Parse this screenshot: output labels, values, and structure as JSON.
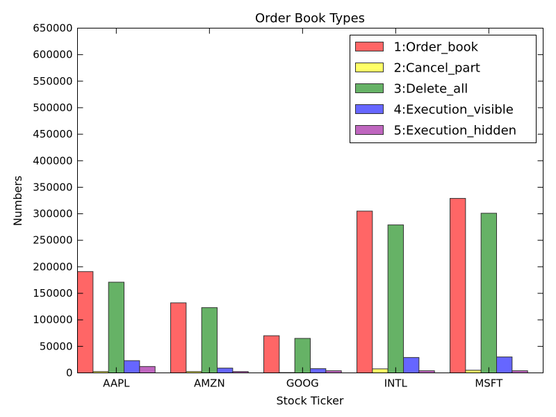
{
  "chart_data": {
    "type": "bar",
    "title": "Order Book Types",
    "xlabel": "Stock Ticker",
    "ylabel": "Numbers",
    "ylim": [
      0,
      650000
    ],
    "yticks": [
      0,
      50000,
      100000,
      150000,
      200000,
      250000,
      300000,
      350000,
      400000,
      450000,
      500000,
      550000,
      600000,
      650000
    ],
    "legend_position": "top-right",
    "grid": false,
    "categories": [
      "AAPL",
      "AMZN",
      "GOOG",
      "INTL",
      "MSFT"
    ],
    "series": [
      {
        "name": "1:Order_book",
        "color": "#ff6666",
        "values": [
          191000,
          132000,
          70000,
          305000,
          329000
        ]
      },
      {
        "name": "2:Cancel_part",
        "color": "#ffff66",
        "values": [
          2500,
          2500,
          500,
          7500,
          5000
        ]
      },
      {
        "name": "3:Delete_all",
        "color": "#66b266",
        "values": [
          171000,
          123000,
          65000,
          279000,
          301000
        ]
      },
      {
        "name": "4:Execution_visible",
        "color": "#6666ff",
        "values": [
          23000,
          9000,
          8000,
          29000,
          30000
        ]
      },
      {
        "name": "5:Execution_hidden",
        "color": "#bf66bf",
        "values": [
          12000,
          2500,
          4000,
          4000,
          4000
        ]
      }
    ]
  }
}
